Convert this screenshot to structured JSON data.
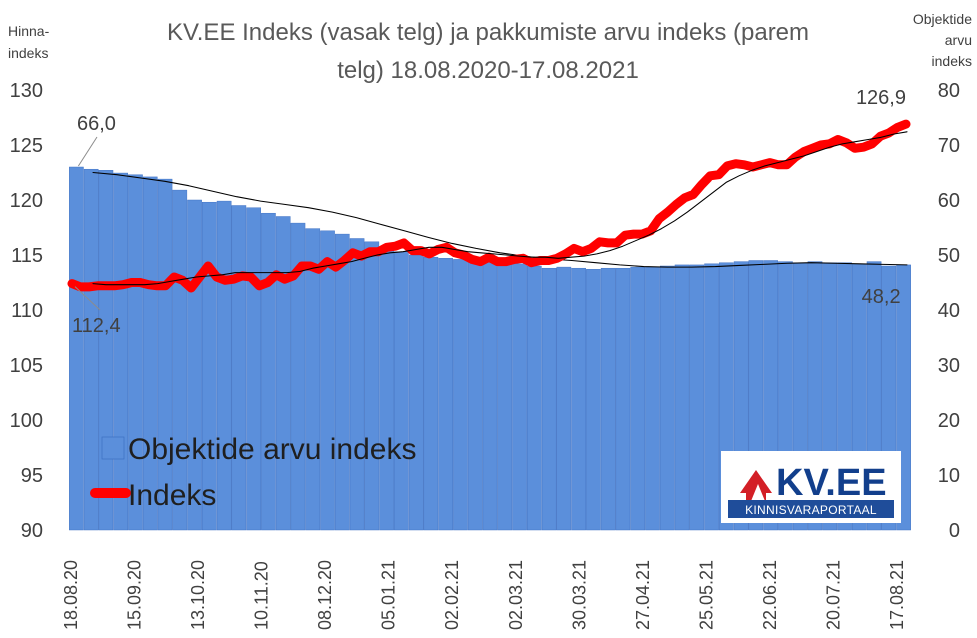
{
  "colors": {
    "bars": "#5b8fdb",
    "bar_edge": "#3d6fc2",
    "index_line": "#ff0000",
    "trend_line": "#000000",
    "title": "#595959",
    "axis_text": "#404040",
    "logo_red": "#d31f26",
    "logo_blue": "#123f8c",
    "logo_bar": "#1f4d9a"
  },
  "logo": {
    "icon_name": "house-logo-icon",
    "main": "KV.EE",
    "sub": "KINNISVARAPORTAAL"
  },
  "chart_data": {
    "type": "bar",
    "title": "KV.EE Indeks (vasak telg) ja pakkumiste arvu indeks (parem telg) 18.08.2020-17.08.2021",
    "title_lines": [
      "KV.EE Indeks (vasak telg) ja pakkumiste arvu indeks (parem",
      "telg) 18.08.2020-17.08.2021"
    ],
    "left_axis_title_lines": [
      "Hinna-",
      "indeks"
    ],
    "right_axis_title_lines": [
      "Objektide",
      "arvu",
      "indeks"
    ],
    "y_left": {
      "min": 90,
      "max": 130,
      "step": 5,
      "ticks": [
        "90",
        "95",
        "100",
        "105",
        "110",
        "115",
        "120",
        "125",
        "130"
      ]
    },
    "y_right": {
      "min": 0,
      "max": 80,
      "step": 10,
      "ticks": [
        "0",
        "10",
        "20",
        "30",
        "40",
        "50",
        "60",
        "70",
        "80"
      ]
    },
    "x_tick_labels": [
      "18.08.20",
      "15.09.20",
      "13.10.20",
      "10.11.20",
      "08.12.20",
      "05.01.21",
      "02.02.21",
      "02.03.21",
      "30.03.21",
      "27.04.21",
      "25.05.21",
      "22.06.21",
      "20.07.21",
      "17.08.21"
    ],
    "legend": {
      "position": "bottom-left",
      "items": [
        {
          "name": "Objektide arvu indeks",
          "kind": "bar"
        },
        {
          "name": "Indeks",
          "kind": "line"
        }
      ]
    },
    "data_labels": [
      {
        "series": "Objektide arvu indeks",
        "text": "66,0",
        "point": "first"
      },
      {
        "series": "Indeks",
        "text": "112,4",
        "point": "first"
      },
      {
        "series": "Indeks",
        "text": "126,9",
        "point": "last"
      },
      {
        "series": "Objektide arvu indeks",
        "text": "48,2",
        "point": "last"
      }
    ],
    "bar_series": {
      "name": "Objektide arvu indeks",
      "axis": "right",
      "values": [
        66.0,
        65.6,
        65.4,
        64.9,
        64.6,
        64.2,
        63.8,
        61.8,
        60.0,
        59.6,
        59.8,
        59.0,
        58.6,
        57.6,
        57.0,
        55.8,
        54.8,
        54.4,
        53.8,
        53.0,
        52.4,
        51.4,
        50.6,
        50.0,
        49.6,
        49.4,
        49.2,
        49.0,
        48.8,
        48.6,
        48.4,
        48.0,
        47.6,
        47.8,
        47.6,
        47.4,
        47.6,
        47.6,
        47.8,
        47.8,
        48.0,
        48.2,
        48.2,
        48.4,
        48.6,
        48.8,
        49.0,
        49.0,
        48.8,
        48.6,
        48.8,
        48.6,
        48.6,
        48.4,
        48.8,
        48.0,
        48.2
      ]
    },
    "line_series": {
      "name": "Indeks",
      "axis": "left",
      "values": [
        112.4,
        112.1,
        112.1,
        112.2,
        112.2,
        112.2,
        112.3,
        112.5,
        112.5,
        112.3,
        112.2,
        112.2,
        113.0,
        112.7,
        112.0,
        113.0,
        114.0,
        113.0,
        112.7,
        112.8,
        113.1,
        113.0,
        112.2,
        112.5,
        113.2,
        112.8,
        113.1,
        114.0,
        114.0,
        113.7,
        114.4,
        113.9,
        114.5,
        115.2,
        114.9,
        115.3,
        115.3,
        115.7,
        115.8,
        116.1,
        115.4,
        115.4,
        115.1,
        115.5,
        115.7,
        115.2,
        115.0,
        114.6,
        114.4,
        114.8,
        114.4,
        114.4,
        114.6,
        114.7,
        114.3,
        114.5,
        114.5,
        114.7,
        115.1,
        115.6,
        115.3,
        115.6,
        116.2,
        116.1,
        116.1,
        116.8,
        116.9,
        116.9,
        117.2,
        118.3,
        118.9,
        119.6,
        120.2,
        120.5,
        121.4,
        122.2,
        122.3,
        123.1,
        123.3,
        123.2,
        123.0,
        123.2,
        123.4,
        123.2,
        123.2,
        123.9,
        124.4,
        124.7,
        125.0,
        125.1,
        125.5,
        125.2,
        124.7,
        124.8,
        125.1,
        125.8,
        126.1,
        126.6,
        126.9
      ]
    },
    "trend_series": {
      "name": "",
      "axis": "left",
      "values": [
        112.4,
        112.3,
        112.3,
        112.3,
        112.3,
        112.4,
        112.6,
        112.8,
        113.0,
        113.1,
        113.2,
        113.4,
        113.4,
        113.4,
        113.4,
        113.4,
        113.5,
        113.8,
        114.0,
        114.2,
        114.4,
        114.7,
        115.0,
        115.2,
        115.3,
        115.5,
        115.7,
        115.7,
        115.5,
        115.3,
        115.2,
        115.1,
        115.0,
        114.9,
        114.8,
        114.8,
        114.7,
        114.8,
        114.9,
        115.1,
        115.4,
        115.8,
        116.3,
        116.8,
        117.4,
        118.1,
        118.9,
        119.8,
        120.7,
        121.6,
        122.2,
        122.7,
        123.1,
        123.4,
        123.7,
        124.0,
        124.4,
        124.8,
        125.1,
        125.3,
        125.5,
        125.7,
        126.0,
        126.2
      ]
    },
    "bar_trend_series": {
      "name": "",
      "axis": "right",
      "values": [
        65.0,
        64.6,
        64.0,
        63.4,
        62.6,
        61.6,
        60.6,
        59.8,
        59.2,
        58.6,
        57.8,
        56.8,
        55.6,
        54.4,
        53.2,
        52.1,
        51.2,
        50.4,
        49.8,
        49.3,
        49.0,
        48.6,
        48.2,
        47.9,
        47.8,
        47.8,
        47.9,
        48.1,
        48.3,
        48.5,
        48.6,
        48.5,
        48.4,
        48.3,
        48.2
      ]
    }
  }
}
